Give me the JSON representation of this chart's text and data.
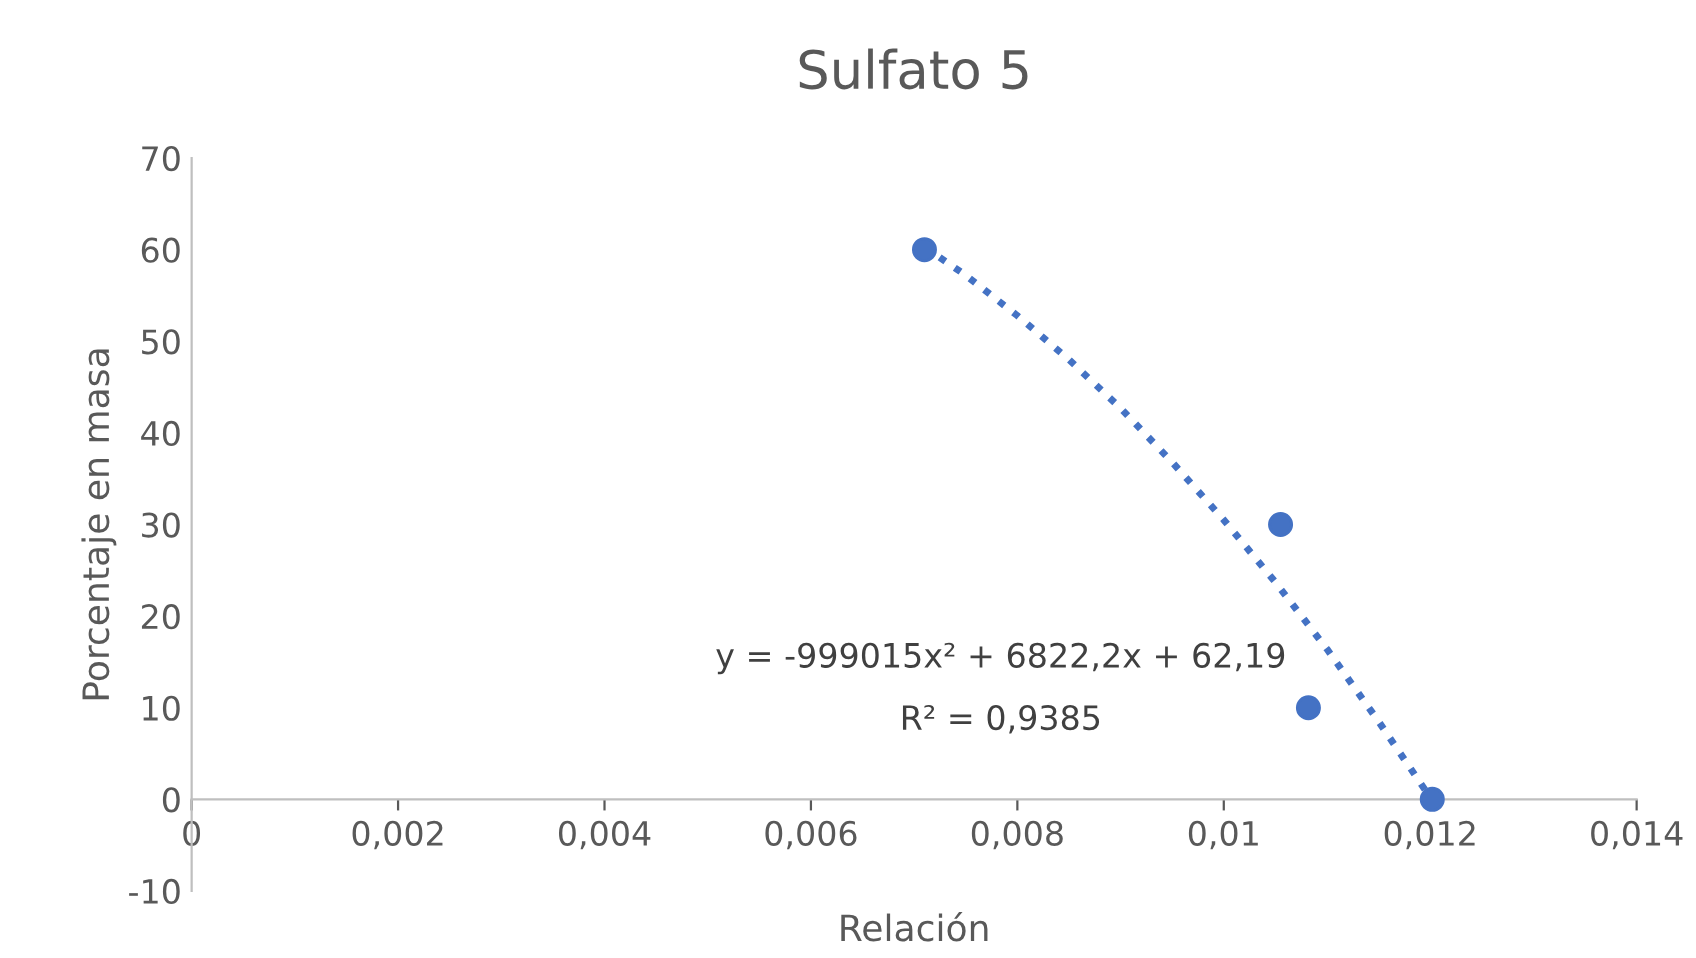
{
  "chart_data": {
    "type": "scatter",
    "title": "Sulfato 5",
    "xlabel": "Relación",
    "ylabel": "Porcentaje en masa",
    "xlim": [
      0,
      0.014
    ],
    "xticks": [
      {
        "value": 0,
        "label": "0"
      },
      {
        "value": 0.002,
        "label": "0,002"
      },
      {
        "value": 0.004,
        "label": "0,004"
      },
      {
        "value": 0.006,
        "label": "0,006"
      },
      {
        "value": 0.008,
        "label": "0,008"
      },
      {
        "value": 0.01,
        "label": "0,01"
      },
      {
        "value": 0.012,
        "label": "0,012"
      },
      {
        "value": 0.014,
        "label": "0,014"
      }
    ],
    "ylim": [
      -10,
      70
    ],
    "yticks": [
      -10,
      0,
      10,
      20,
      30,
      40,
      50,
      60,
      70
    ],
    "grid": false,
    "legend": false,
    "marker": "circle",
    "series": [
      {
        "color": "#4472c4",
        "x": [
          0.0071,
          0.01055,
          0.01082,
          0.01202
        ],
        "values": [
          60,
          30,
          10,
          0
        ]
      },
      {
        "type": "line",
        "color": "#4472c4",
        "line_style": "dotted",
        "marker": "none",
        "x": [
          0.0071,
          0.0075,
          0.008,
          0.0085,
          0.009,
          0.0095,
          0.01,
          0.0105,
          0.011,
          0.0115,
          0.012
        ],
        "values": [
          60.3,
          57.2,
          52.8,
          48.0,
          42.7,
          36.8,
          30.5,
          23.7,
          16.4,
          8.5,
          0.2
        ]
      }
    ],
    "annotations": [
      "y = -999015x² + 6822,2x + 62,19",
      "R² = 0,9385"
    ]
  }
}
